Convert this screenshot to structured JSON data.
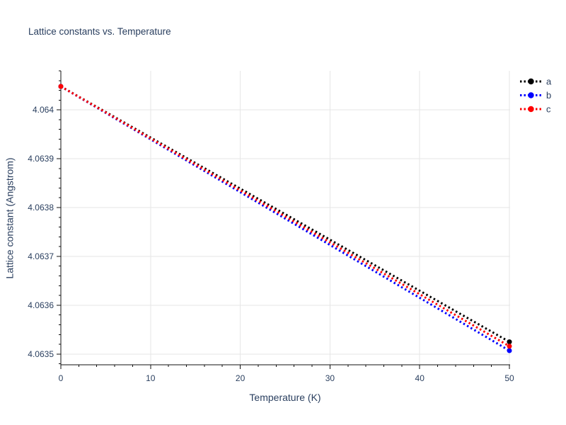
{
  "chart_data": {
    "type": "line",
    "title": "Lattice constants vs. Temperature",
    "xlabel": "Temperature (K)",
    "ylabel": "Lattice constant (Angstrom)",
    "xlim": [
      0,
      50
    ],
    "ylim": [
      4.063478,
      4.06408
    ],
    "x_ticks": [
      0,
      10,
      20,
      30,
      40,
      50
    ],
    "x_tick_labels": [
      "0",
      "10",
      "20",
      "30",
      "40",
      "50"
    ],
    "y_ticks": [
      4.0635,
      4.0636,
      4.0637,
      4.0638,
      4.0639,
      4.064
    ],
    "y_tick_labels": [
      "4.0635",
      "4.0636",
      "4.0637",
      "4.0638",
      "4.0639",
      "4.064"
    ],
    "x_minor_step": 2,
    "y_minor_step": 2e-05,
    "grid": true,
    "line_style": "dotted",
    "legend_position": "top-right-outside",
    "series": [
      {
        "name": "a",
        "color": "#000000",
        "x": [
          0,
          50
        ],
        "y": [
          4.064048,
          4.063525
        ]
      },
      {
        "name": "b",
        "color": "#0000ff",
        "x": [
          0,
          50
        ],
        "y": [
          4.064048,
          4.063507
        ]
      },
      {
        "name": "c",
        "color": "#ff0000",
        "x": [
          0,
          50
        ],
        "y": [
          4.064048,
          4.063516
        ]
      }
    ]
  },
  "colors": {
    "text": "#2a3f5f",
    "grid": "#e6e6e6",
    "axis": "#111111"
  }
}
